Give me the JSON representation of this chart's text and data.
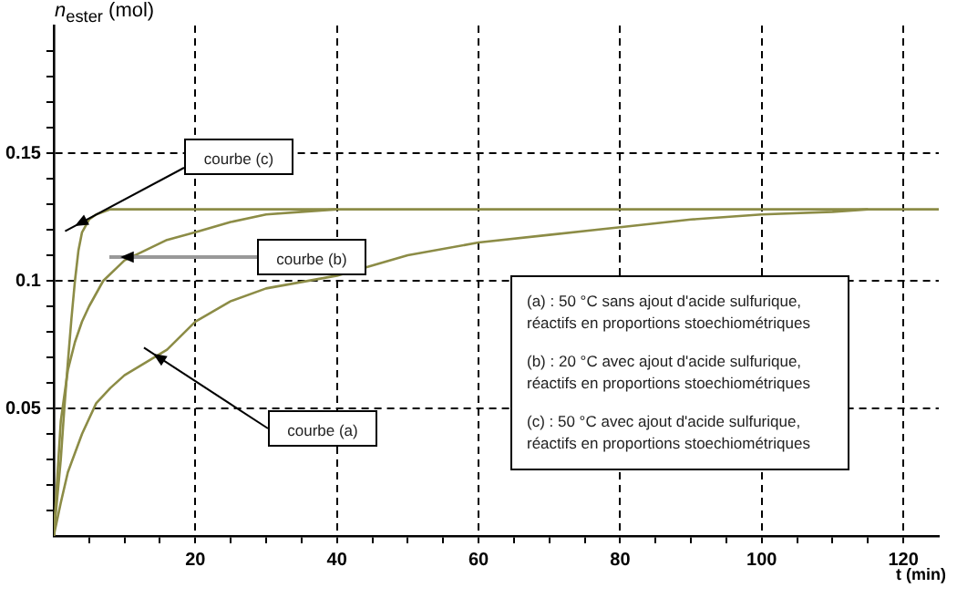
{
  "chart_data": {
    "type": "line",
    "ylabel": "n$_{ester}$ (mol)",
    "xlabel": "t (min)",
    "xlim": [
      0,
      125
    ],
    "ylim": [
      0,
      0.2
    ],
    "xticks": [
      {
        "value": 5,
        "label": null
      },
      {
        "value": 10,
        "label": null
      },
      {
        "value": 15,
        "label": null
      },
      20,
      {
        "value": 25,
        "label": null
      },
      {
        "value": 30,
        "label": null
      },
      {
        "value": 35,
        "label": null
      },
      40,
      {
        "value": 45,
        "label": null
      },
      {
        "value": 50,
        "label": null
      },
      {
        "value": 55,
        "label": null
      },
      60,
      {
        "value": 65,
        "label": null
      },
      {
        "value": 70,
        "label": null
      },
      {
        "value": 75,
        "label": null
      },
      80,
      {
        "value": 85,
        "label": null
      },
      {
        "value": 90,
        "label": null
      },
      {
        "value": 95,
        "label": null
      },
      100,
      {
        "value": 105,
        "label": null
      },
      {
        "value": 110,
        "label": null
      },
      {
        "value": 115,
        "label": null
      },
      120
    ],
    "yticks": [
      {
        "value": 0.01,
        "label": null
      },
      {
        "value": 0.02,
        "label": null
      },
      {
        "value": 0.03,
        "label": null
      },
      {
        "value": 0.04,
        "label": null
      },
      0.05,
      {
        "value": 0.06,
        "label": null
      },
      {
        "value": 0.07,
        "label": null
      },
      {
        "value": 0.08,
        "label": null
      },
      {
        "value": 0.09,
        "label": null
      },
      0.1,
      {
        "value": 0.11,
        "label": null
      },
      {
        "value": 0.12,
        "label": null
      },
      {
        "value": 0.13,
        "label": null
      },
      {
        "value": 0.14,
        "label": null
      },
      0.15,
      {
        "value": 0.16,
        "label": null
      },
      {
        "value": 0.17,
        "label": null
      },
      {
        "value": 0.18,
        "label": null
      },
      {
        "value": 0.19,
        "label": null
      }
    ],
    "grid": true,
    "legend": false,
    "marker": "none",
    "line_style": "solid",
    "series": [
      {
        "color": "#8c8c46",
        "x": [
          0,
          1,
          2,
          4,
          6,
          8,
          10,
          13,
          16,
          20,
          25,
          30,
          40,
          50,
          60,
          70,
          80,
          90,
          100,
          110,
          115
        ],
        "values": [
          0,
          0.013,
          0.025,
          0.04,
          0.052,
          0.058,
          0.063,
          0.068,
          0.073,
          0.084,
          0.092,
          0.097,
          0.102,
          0.11,
          0.115,
          0.118,
          0.121,
          0.124,
          0.126,
          0.127,
          0.128
        ]
      },
      {
        "color": "#8c8c46",
        "x": [
          0,
          1,
          2,
          3,
          4,
          5,
          7,
          10,
          13,
          16,
          20,
          25,
          30,
          35,
          40
        ],
        "values": [
          0,
          0.045,
          0.065,
          0.076,
          0.084,
          0.09,
          0.1,
          0.108,
          0.112,
          0.116,
          0.119,
          0.123,
          0.126,
          0.127,
          0.128
        ]
      },
      {
        "color": "#8c8c46",
        "x": [
          0,
          1,
          1.5,
          2,
          2.5,
          3,
          3.5,
          4,
          5,
          6,
          8,
          10,
          125
        ],
        "values": [
          0,
          0.03,
          0.05,
          0.068,
          0.085,
          0.1,
          0.112,
          0.119,
          0.124,
          0.126,
          0.128,
          0.128,
          0.128
        ]
      }
    ],
    "annotations": [
      "courbe (c)",
      "courbe (b)",
      "courbe (a)",
      "(a) : 50 °C sans ajout d'acide sulfurique, réactifs en proportions stoechiométriques",
      "(b) : 20 °C avec ajout d'acide sulfurique, réactifs en proportions stoechiométriques",
      "(c) : 50 °C avec ajout d'acide sulfurique, réactifs en proportions stoechiométriques"
    ]
  }
}
